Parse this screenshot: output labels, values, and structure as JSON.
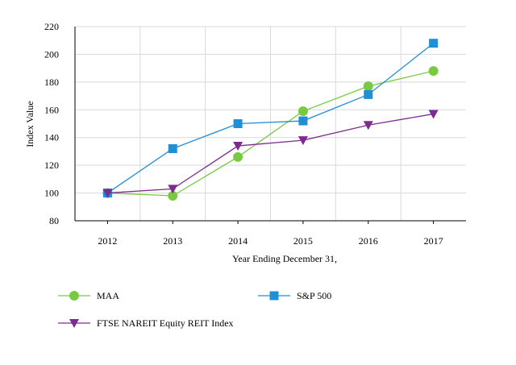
{
  "chart_data": {
    "type": "line",
    "xlabel": "Year Ending December 31,",
    "ylabel": "Index Value",
    "categories": [
      "2012",
      "2013",
      "2014",
      "2015",
      "2016",
      "2017"
    ],
    "ylim": [
      80,
      220
    ],
    "yticks": [
      80,
      100,
      120,
      140,
      160,
      180,
      200,
      220
    ],
    "grid": "horizontal and vertical",
    "legend_position": "bottom",
    "series": [
      {
        "name": "MAA",
        "color": "#7ac943",
        "marker": "circle",
        "values": [
          100,
          98,
          126,
          159,
          177,
          188
        ]
      },
      {
        "name": "S&P 500",
        "color": "#1f8fd6",
        "marker": "square",
        "values": [
          100,
          132,
          150,
          152,
          171,
          208
        ]
      },
      {
        "name": "FTSE NAREIT Equity REIT Index",
        "color": "#7b2d8e",
        "marker": "triangle-down",
        "values": [
          100,
          103,
          134,
          138,
          149,
          157
        ]
      }
    ]
  }
}
